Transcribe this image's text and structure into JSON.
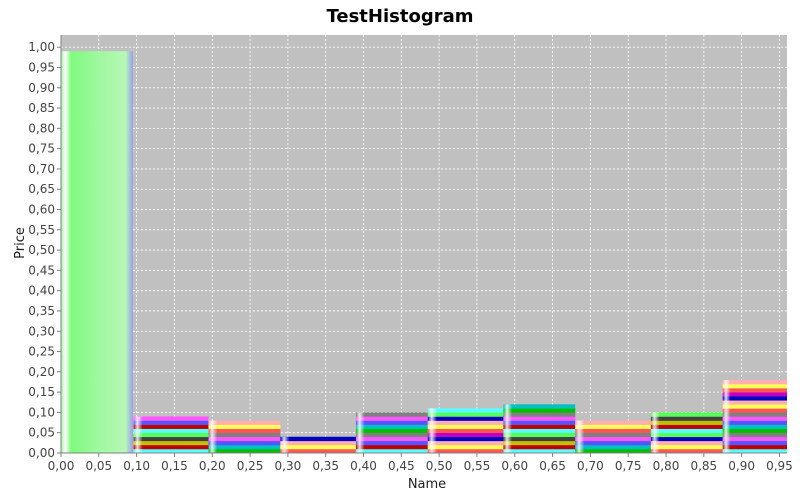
{
  "chart_data": {
    "type": "bar",
    "title": "TestHistogram",
    "xlabel": "Name",
    "ylabel": "Price",
    "xlim": [
      0.0,
      0.96
    ],
    "ylim": [
      0.0,
      1.03
    ],
    "grid": true,
    "background_color": "#c0c0c0",
    "x_ticks": [
      "0,00",
      "0,05",
      "0,10",
      "0,15",
      "0,20",
      "0,25",
      "0,30",
      "0,35",
      "0,40",
      "0,45",
      "0,50",
      "0,55",
      "0,60",
      "0,65",
      "0,70",
      "0,75",
      "0,80",
      "0,85",
      "0,90",
      "0,95"
    ],
    "y_ticks": [
      "0,00",
      "0,05",
      "0,10",
      "0,15",
      "0,20",
      "0,25",
      "0,30",
      "0,35",
      "0,40",
      "0,45",
      "0,50",
      "0,55",
      "0,60",
      "0,65",
      "0,70",
      "0,75",
      "0,80",
      "0,85",
      "0,90",
      "0,95",
      "1,00"
    ],
    "bins": [
      {
        "start": 0.0,
        "end": 0.095,
        "value": 0.99
      },
      {
        "start": 0.096,
        "end": 0.195,
        "value": 0.09
      },
      {
        "start": 0.195,
        "end": 0.29,
        "value": 0.08
      },
      {
        "start": 0.29,
        "end": 0.39,
        "value": 0.04
      },
      {
        "start": 0.39,
        "end": 0.485,
        "value": 0.1
      },
      {
        "start": 0.485,
        "end": 0.585,
        "value": 0.11
      },
      {
        "start": 0.585,
        "end": 0.68,
        "value": 0.12
      },
      {
        "start": 0.68,
        "end": 0.78,
        "value": 0.08
      },
      {
        "start": 0.78,
        "end": 0.875,
        "value": 0.1
      },
      {
        "start": 0.875,
        "end": 0.96,
        "value": 0.18
      }
    ],
    "stripe_colors": [
      "#ff5555",
      "#5555ff",
      "#55ff55",
      "#ffff55",
      "#ff55ff",
      "#55ffff",
      "#ffafaf",
      "#808080",
      "#c00000",
      "#0000c0",
      "#00c000",
      "#c0c000",
      "#c000c0",
      "#00c0c0",
      "#404040",
      "#ff5555",
      "#5555ff",
      "#55ff55",
      "#ffff55",
      "#ff55ff",
      "#55ffff",
      "#ffafaf",
      "#808080",
      "#c00000",
      "#0000c0"
    ]
  }
}
